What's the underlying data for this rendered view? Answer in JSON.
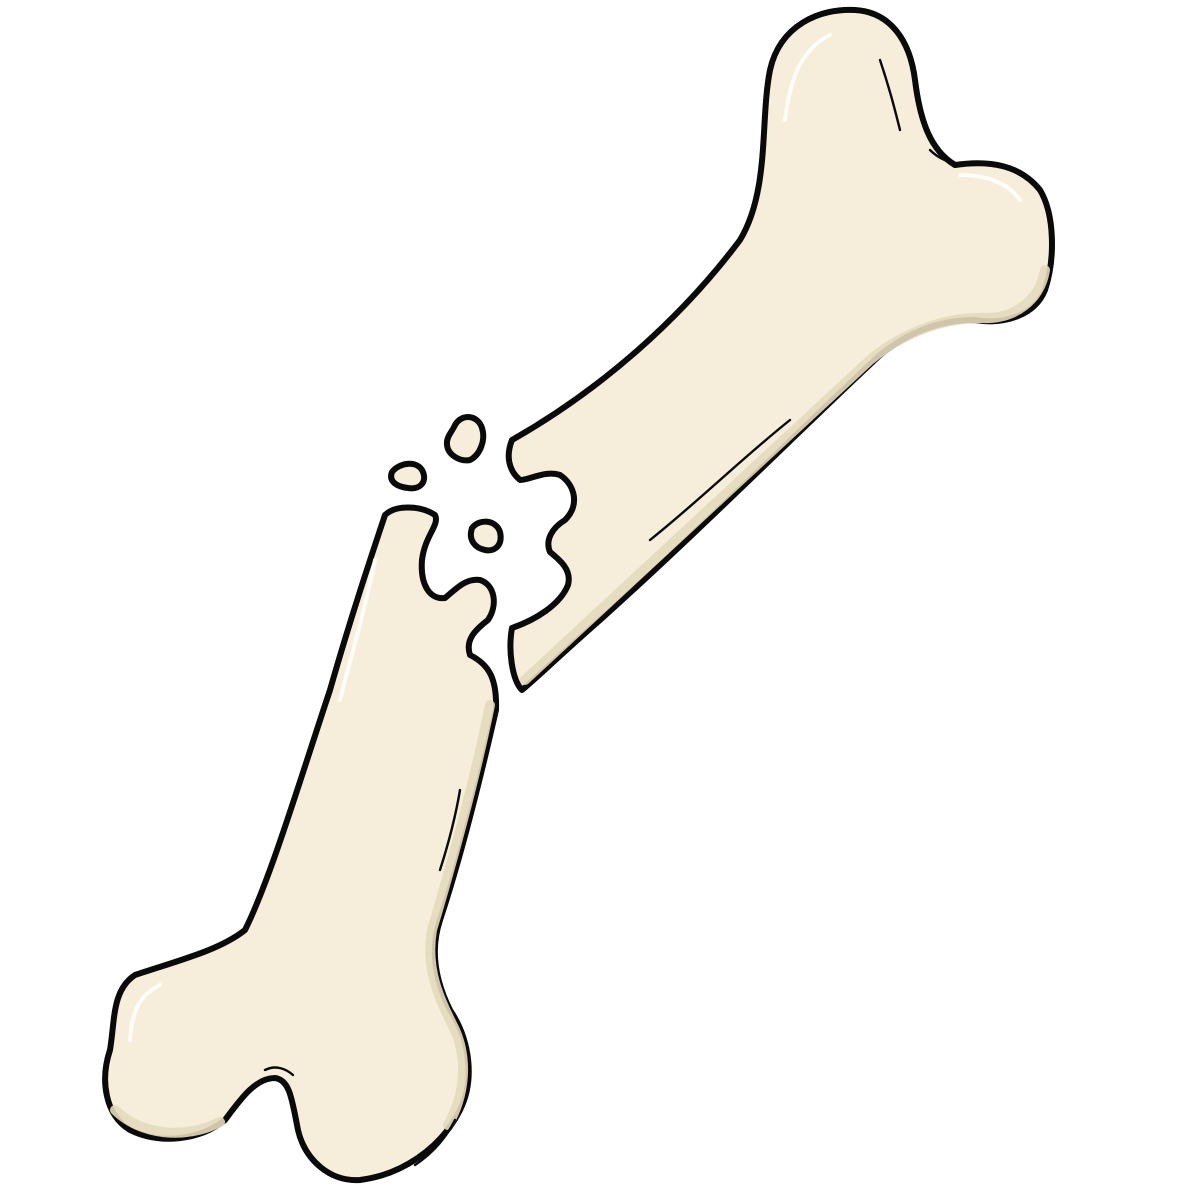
{
  "illustration": {
    "subject": "broken-bone",
    "colors": {
      "background": "#ffffff",
      "bone_fill": "#f6eedb",
      "bone_shade": "#e4d9bd",
      "outline": "#0a0a0a",
      "highlight": "#ffffff"
    },
    "parts": [
      "upper-bone-fragment",
      "lower-bone-fragment",
      "bone-chip-1",
      "bone-chip-2",
      "bone-chip-3"
    ]
  }
}
